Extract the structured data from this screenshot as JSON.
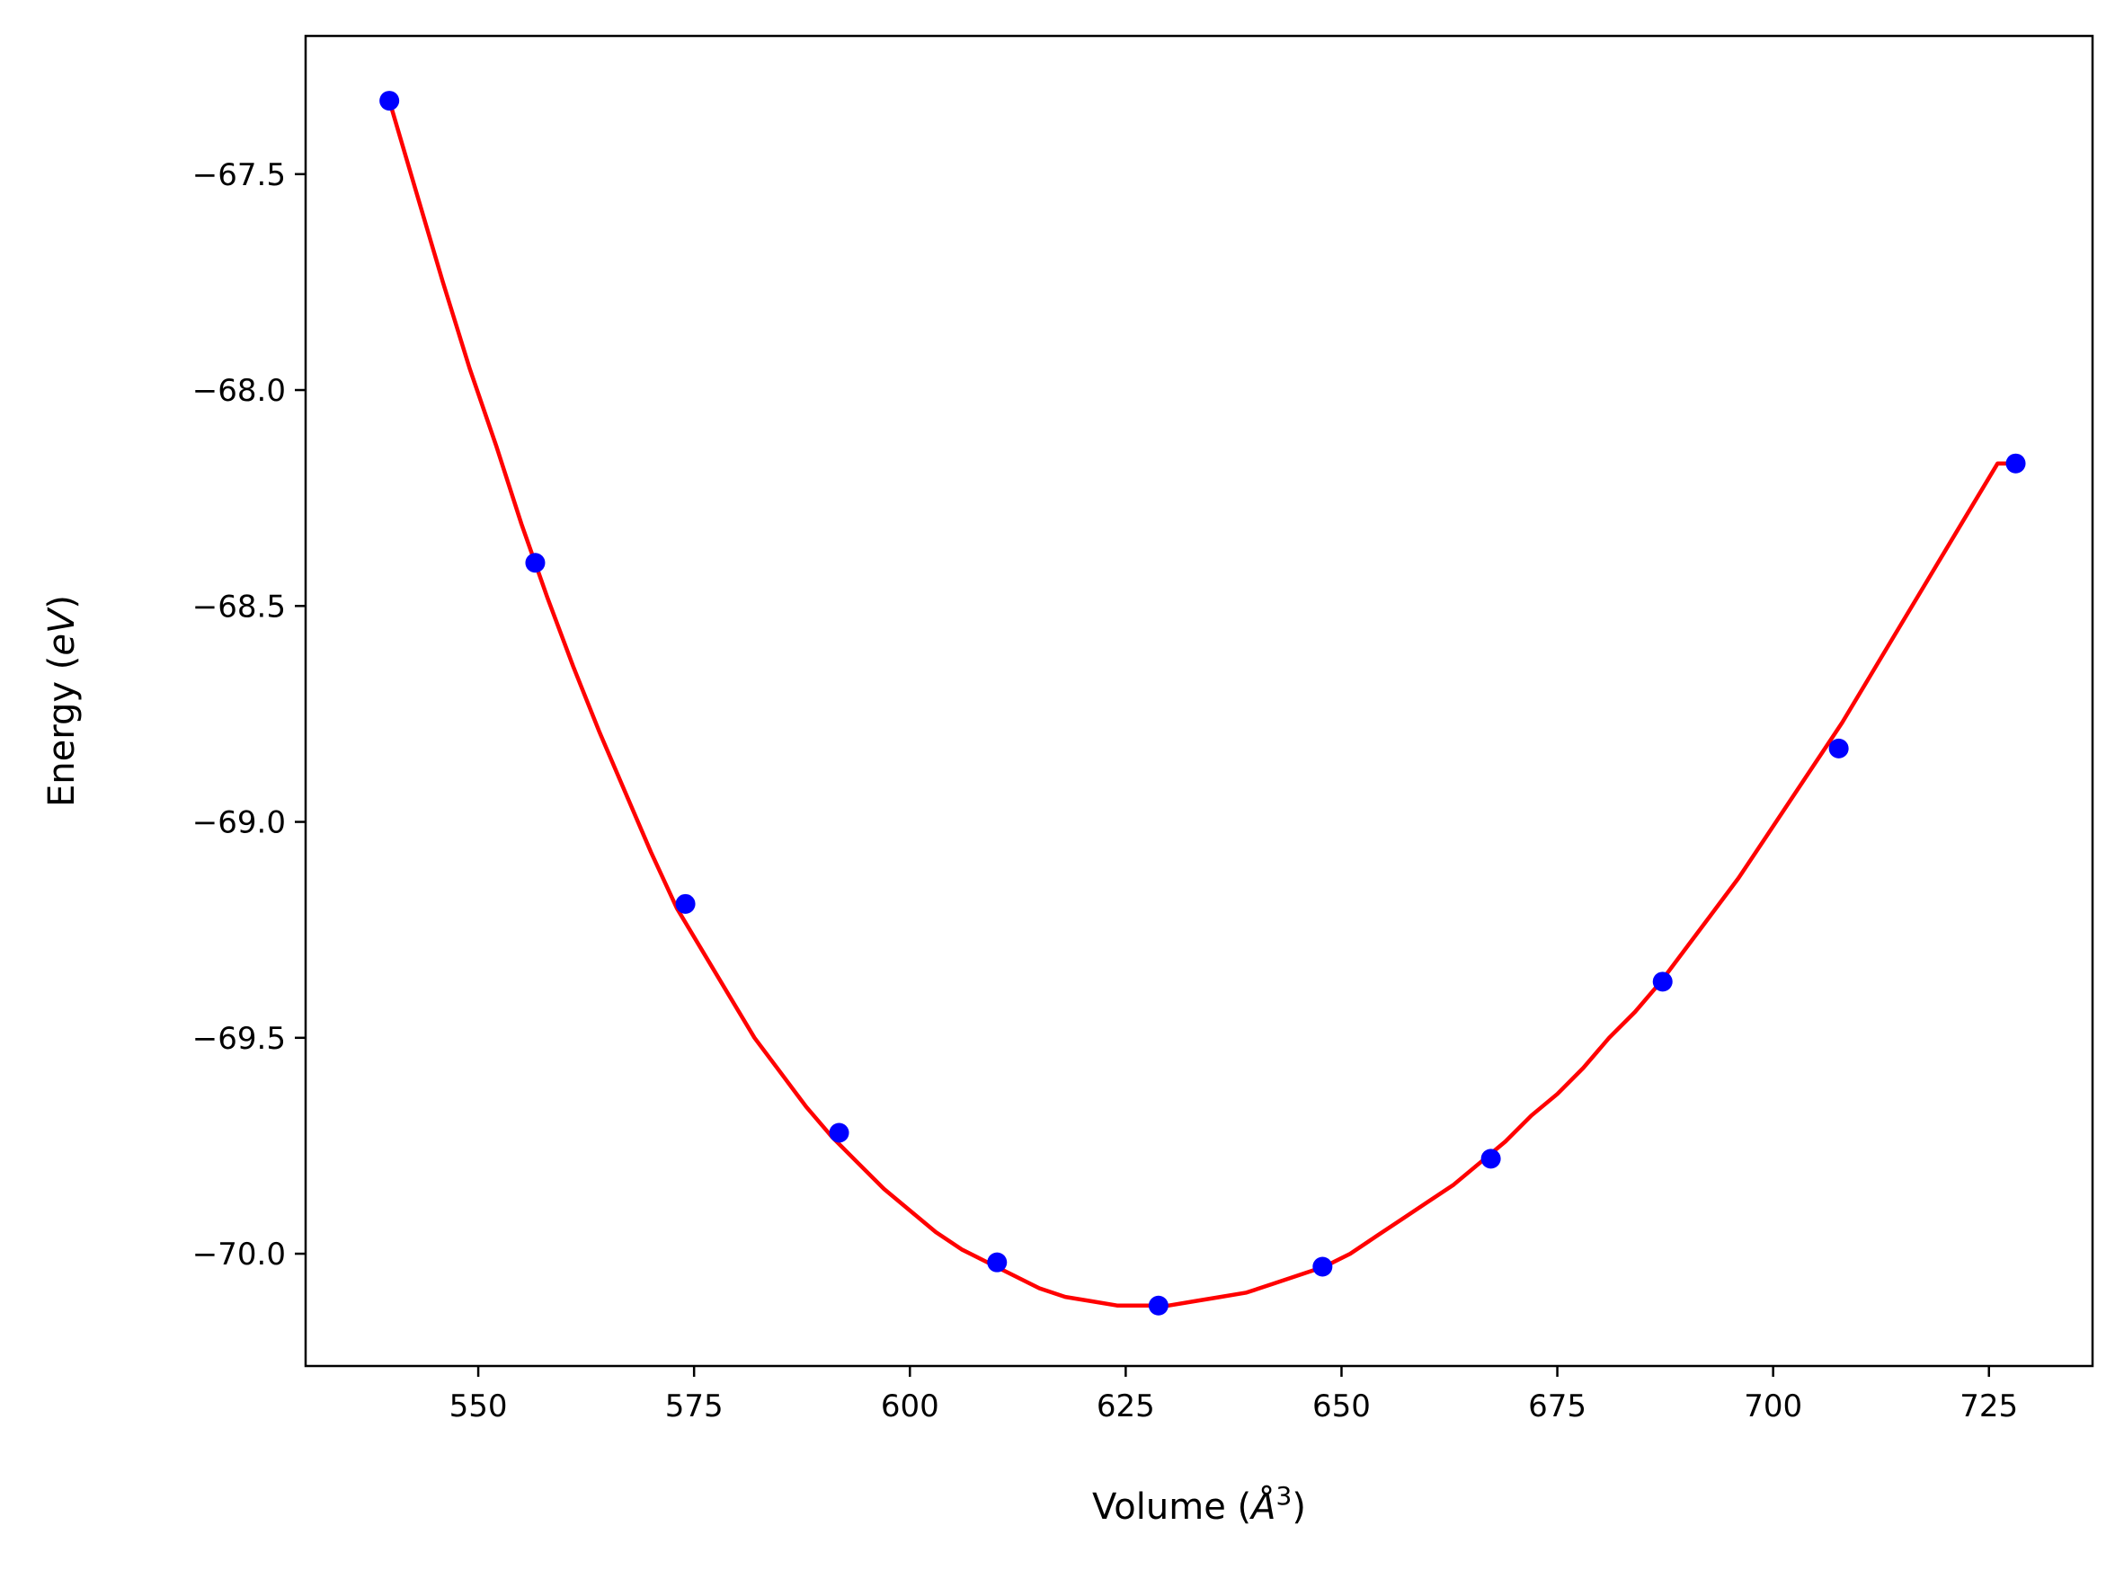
{
  "chart_data": {
    "type": "line",
    "title": "",
    "xlabel": {
      "prefix": "Volume (",
      "unit": "Å",
      "exponent": "3",
      "suffix": ")"
    },
    "ylabel": {
      "prefix": "Energy (",
      "unit": "eV",
      "suffix": ")"
    },
    "xlim": [
      530,
      737
    ],
    "ylim": [
      -70.26,
      -67.18
    ],
    "xticks": [
      550,
      575,
      600,
      625,
      650,
      675,
      700,
      725
    ],
    "yticks": [
      -70.0,
      -69.5,
      -69.0,
      -68.5,
      -68.0,
      -67.5
    ],
    "xtick_labels": [
      "550",
      "575",
      "600",
      "625",
      "650",
      "675",
      "700",
      "725"
    ],
    "ytick_labels": [
      "−70.0",
      "−69.5",
      "−69.0",
      "−68.5",
      "−68.0",
      "−67.5"
    ],
    "grid": false,
    "legend": false,
    "series": [
      {
        "kind": "scatter",
        "color": "#0000ff",
        "x": [
          539.7,
          556.6,
          574.0,
          591.8,
          610.1,
          628.8,
          647.8,
          667.3,
          687.2,
          707.6,
          728.1
        ],
        "y": [
          -67.33,
          -68.4,
          -69.19,
          -69.72,
          -70.02,
          -70.12,
          -70.03,
          -69.78,
          -69.37,
          -68.83,
          -68.17
        ]
      },
      {
        "kind": "fit-line",
        "color": "#ff0000",
        "x": [
          539.7,
          542.8,
          545.9,
          549.0,
          552.1,
          555.0,
          558.0,
          561.0,
          564.0,
          567.0,
          570.0,
          573.0,
          576.0,
          579.0,
          582.0,
          585.0,
          588.0,
          591.0,
          594.0,
          597.0,
          600.0,
          603.0,
          606.0,
          609.0,
          612.0,
          615.0,
          618.0,
          621.0,
          624.0,
          627.0,
          630.0,
          633.0,
          636.0,
          639.0,
          642.0,
          645.0,
          648.0,
          651.0,
          654.0,
          657.0,
          660.0,
          663.0,
          666.0,
          669.0,
          672.0,
          675.0,
          678.0,
          681.0,
          684.0,
          687.0,
          690.0,
          693.0,
          696.0,
          699.0,
          702.0,
          705.0,
          708.0,
          711.0,
          714.0,
          717.0,
          720.0,
          723.0,
          726.0,
          728.1
        ],
        "y": [
          -67.33,
          -67.54,
          -67.75,
          -67.95,
          -68.13,
          -68.31,
          -68.48,
          -68.64,
          -68.79,
          -68.93,
          -69.07,
          -69.2,
          -69.3,
          -69.4,
          -69.5,
          -69.58,
          -69.66,
          -69.73,
          -69.79,
          -69.85,
          -69.9,
          -69.95,
          -69.99,
          -70.02,
          -70.05,
          -70.08,
          -70.1,
          -70.11,
          -70.12,
          -70.12,
          -70.12,
          -70.11,
          -70.1,
          -70.09,
          -70.07,
          -70.05,
          -70.03,
          -70.0,
          -69.96,
          -69.92,
          -69.88,
          -69.84,
          -69.79,
          -69.74,
          -69.68,
          -69.63,
          -69.57,
          -69.5,
          -69.44,
          -69.37,
          -69.29,
          -69.21,
          -69.13,
          -69.04,
          -68.95,
          -68.86,
          -68.77,
          -68.67,
          -68.57,
          -68.47,
          -68.37,
          -68.27,
          -68.17,
          -68.17
        ]
      }
    ]
  }
}
